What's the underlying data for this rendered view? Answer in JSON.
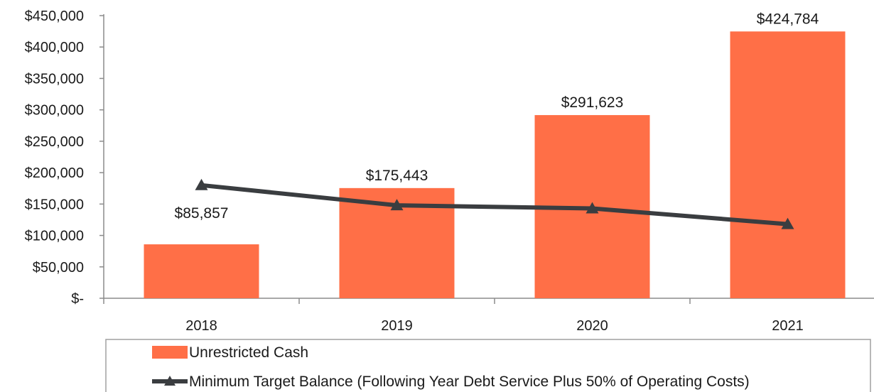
{
  "chart_data": {
    "type": "bar",
    "categories": [
      "2018",
      "2019",
      "2020",
      "2021"
    ],
    "ylim": [
      0,
      450000
    ],
    "y_ticks": [
      0,
      50000,
      100000,
      150000,
      200000,
      250000,
      300000,
      350000,
      400000,
      450000
    ],
    "y_tick_labels": [
      "$-",
      "$50,000",
      "$100,000",
      "$150,000",
      "$200,000",
      "$250,000",
      "$300,000",
      "$350,000",
      "$400,000",
      "$450,000"
    ],
    "grid": false,
    "legend_position": "bottom",
    "series": [
      {
        "name": "Unrestricted Cash",
        "type": "bar",
        "color": "#FF6F47",
        "values": [
          85857,
          175443,
          291623,
          424784
        ],
        "data_labels": [
          "$85,857",
          "$175,443",
          "$291,623",
          "$424,784"
        ]
      },
      {
        "name": "Minimum Target Balance (Following Year Debt Service Plus 50% of Operating Costs)",
        "type": "line",
        "marker": "triangle",
        "color": "#3A3D40",
        "values": [
          180000,
          148000,
          143000,
          118000
        ]
      }
    ]
  }
}
